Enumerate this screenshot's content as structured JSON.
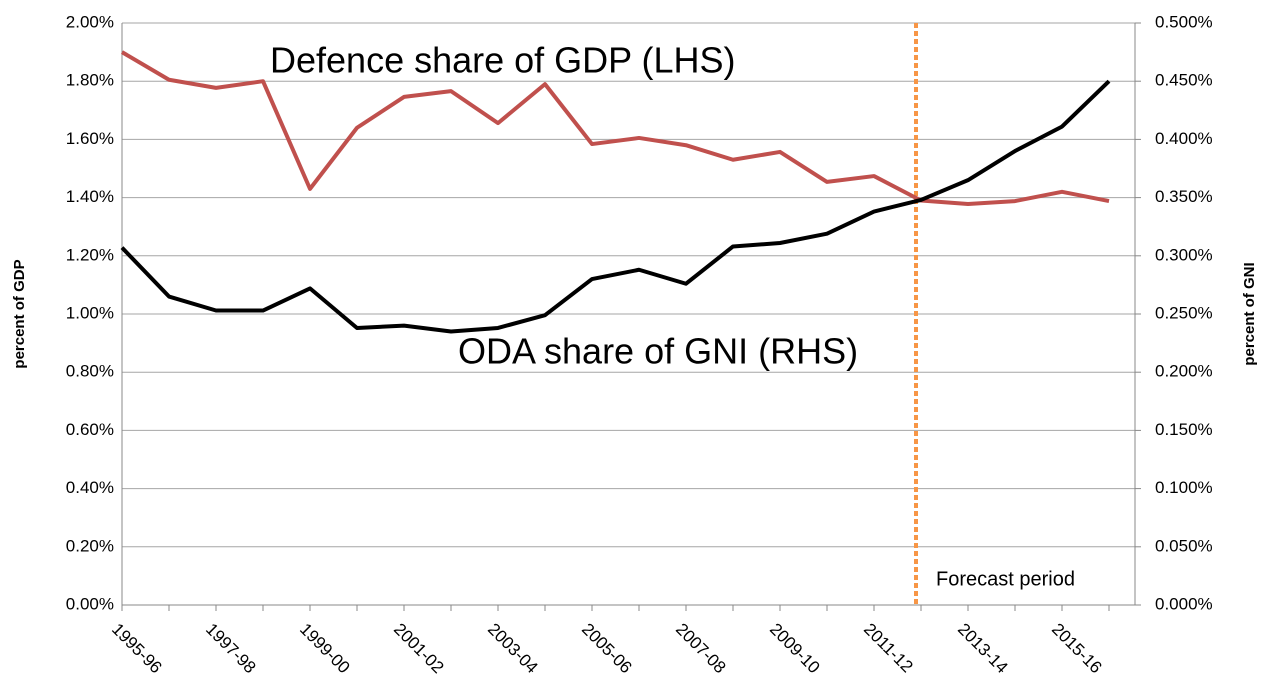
{
  "chart_data": {
    "type": "line",
    "annotations": [
      "Defence share of GDP (LHS)",
      "ODA share of GNI (RHS)",
      "Forecast period"
    ],
    "ylabel": "percent of GDP",
    "y2label": "percent of GNI",
    "categories": [
      "1995-96",
      null,
      "1997-98",
      null,
      "1999-00",
      null,
      "2001-02",
      null,
      "2003-04",
      null,
      "2005-06",
      null,
      "2007-08",
      null,
      "2009-10",
      null,
      "2011-12",
      null,
      "2013-14",
      null,
      "2015-16",
      null
    ],
    "series": [
      {
        "name": "Defence share of GDP (LHS)",
        "color": "#c0504d",
        "values": [
          1.9,
          1.805,
          1.777,
          1.8,
          1.43,
          1.64,
          1.746,
          1.766,
          1.656,
          1.79,
          1.584,
          1.605,
          1.58,
          1.53,
          1.557,
          1.454,
          1.474,
          1.39,
          1.378,
          1.388,
          1.42,
          1.388
        ]
      },
      {
        "name": "ODA share of GNI (RHS)",
        "color": "#000000",
        "axis": "y2",
        "values": [
          0.307,
          0.265,
          0.253,
          0.253,
          0.272,
          0.238,
          0.24,
          0.235,
          0.238,
          0.249,
          0.28,
          0.288,
          0.276,
          0.308,
          0.311,
          0.319,
          0.338,
          0.348,
          0.365,
          0.39,
          0.411,
          0.45
        ]
      }
    ],
    "ylim": [
      0,
      2
    ],
    "yticks": [
      {
        "value": 0,
        "label": "0.00%"
      },
      {
        "value": 0.2,
        "label": "0.20%"
      },
      {
        "value": 0.4,
        "label": "0.40%"
      },
      {
        "value": 0.6,
        "label": "0.60%"
      },
      {
        "value": 0.8,
        "label": "0.80%"
      },
      {
        "value": 1.0,
        "label": "1.00%"
      },
      {
        "value": 1.2,
        "label": "1.20%"
      },
      {
        "value": 1.4,
        "label": "1.40%"
      },
      {
        "value": 1.6,
        "label": "1.60%"
      },
      {
        "value": 1.8,
        "label": "1.80%"
      },
      {
        "value": 2.0,
        "label": "2.00%"
      }
    ],
    "y2lim": [
      0,
      0.5
    ],
    "y2ticks": [
      {
        "value": 0,
        "label": "0.000%"
      },
      {
        "value": 0.05,
        "label": "0.050%"
      },
      {
        "value": 0.1,
        "label": "0.100%"
      },
      {
        "value": 0.15,
        "label": "0.150%"
      },
      {
        "value": 0.2,
        "label": "0.200%"
      },
      {
        "value": 0.25,
        "label": "0.250%"
      },
      {
        "value": 0.3,
        "label": "0.300%"
      },
      {
        "value": 0.35,
        "label": "0.350%"
      },
      {
        "value": 0.4,
        "label": "0.400%"
      },
      {
        "value": 0.45,
        "label": "0.450%"
      },
      {
        "value": 0.5,
        "label": "0.500%"
      }
    ],
    "grid": true
  }
}
